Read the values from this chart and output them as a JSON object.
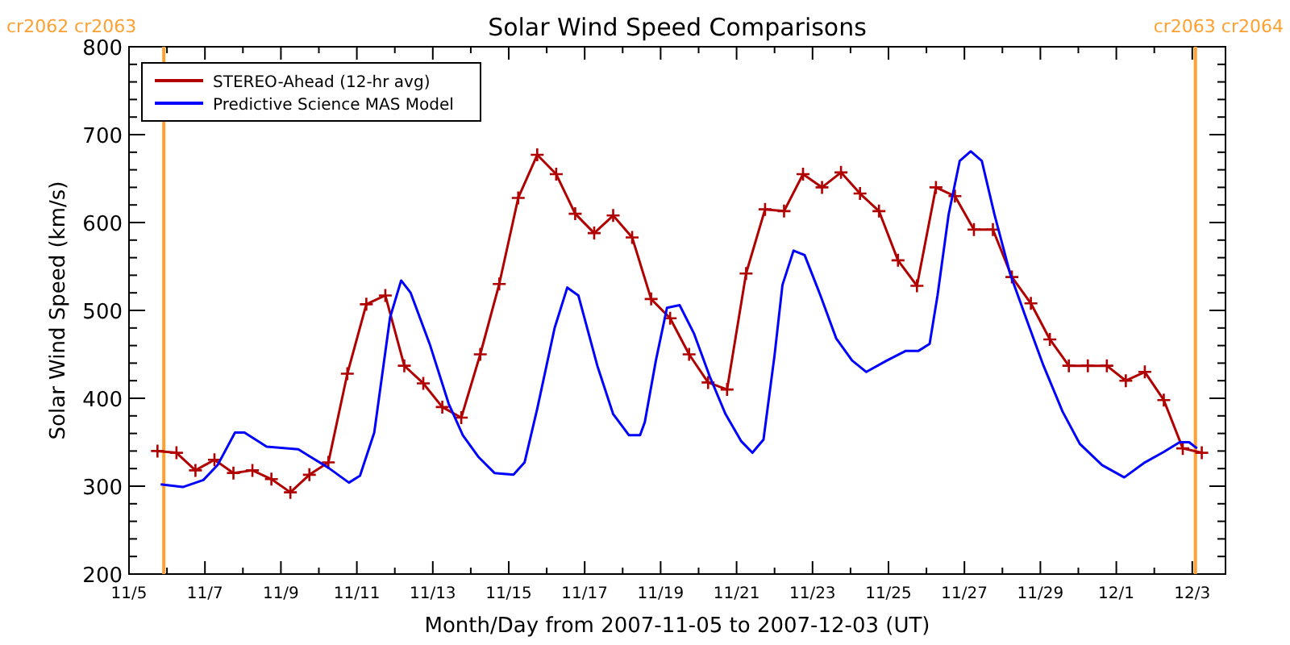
{
  "chart_data": {
    "type": "line",
    "title": "Solar Wind Speed Comparisons",
    "xlabel": "Month/Day from 2007-11-05 to 2007-12-03 (UT)",
    "ylabel": "Solar Wind Speed (km/s)",
    "xlim": [
      "2007-11-05",
      "2007-12-03T21:00"
    ],
    "xticks": [
      {
        "value": "2007-11-05",
        "label": "11/5"
      },
      {
        "value": "2007-11-06",
        "label": null
      },
      {
        "value": "2007-11-07",
        "label": "11/7"
      },
      {
        "value": "2007-11-08",
        "label": null
      },
      {
        "value": "2007-11-09",
        "label": "11/9"
      },
      {
        "value": "2007-11-10",
        "label": null
      },
      {
        "value": "2007-11-11",
        "label": "11/11"
      },
      {
        "value": "2007-11-12",
        "label": null
      },
      {
        "value": "2007-11-13",
        "label": "11/13"
      },
      {
        "value": "2007-11-14",
        "label": null
      },
      {
        "value": "2007-11-15",
        "label": "11/15"
      },
      {
        "value": "2007-11-16",
        "label": null
      },
      {
        "value": "2007-11-17",
        "label": "11/17"
      },
      {
        "value": "2007-11-18",
        "label": null
      },
      {
        "value": "2007-11-19",
        "label": "11/19"
      },
      {
        "value": "2007-11-20",
        "label": null
      },
      {
        "value": "2007-11-21",
        "label": "11/21"
      },
      {
        "value": "2007-11-22",
        "label": null
      },
      {
        "value": "2007-11-23",
        "label": "11/23"
      },
      {
        "value": "2007-11-24",
        "label": null
      },
      {
        "value": "2007-11-25",
        "label": "11/25"
      },
      {
        "value": "2007-11-26",
        "label": null
      },
      {
        "value": "2007-11-27",
        "label": "11/27"
      },
      {
        "value": "2007-11-28",
        "label": null
      },
      {
        "value": "2007-11-29",
        "label": "11/29"
      },
      {
        "value": "2007-11-30",
        "label": null
      },
      {
        "value": "2007-12-01",
        "label": "12/1"
      },
      {
        "value": "2007-12-02",
        "label": null
      },
      {
        "value": "2007-12-03",
        "label": "12/3"
      }
    ],
    "ylim": [
      200,
      800
    ],
    "yticks": [
      200,
      {
        "value": 220,
        "label": null
      },
      {
        "value": 240,
        "label": null
      },
      {
        "value": 260,
        "label": null
      },
      {
        "value": 280,
        "label": null
      },
      300,
      {
        "value": 320,
        "label": null
      },
      {
        "value": 340,
        "label": null
      },
      {
        "value": 360,
        "label": null
      },
      {
        "value": 380,
        "label": null
      },
      400,
      {
        "value": 420,
        "label": null
      },
      {
        "value": 440,
        "label": null
      },
      {
        "value": 460,
        "label": null
      },
      {
        "value": 480,
        "label": null
      },
      500,
      {
        "value": 520,
        "label": null
      },
      {
        "value": 540,
        "label": null
      },
      {
        "value": 560,
        "label": null
      },
      {
        "value": 580,
        "label": null
      },
      600,
      {
        "value": 620,
        "label": null
      },
      {
        "value": 640,
        "label": null
      },
      {
        "value": 660,
        "label": null
      },
      {
        "value": 680,
        "label": null
      },
      700,
      {
        "value": 720,
        "label": null
      },
      {
        "value": 740,
        "label": null
      },
      {
        "value": 760,
        "label": null
      },
      {
        "value": 780,
        "label": null
      },
      800
    ],
    "grid": false,
    "legend": "top left",
    "ref_lines": [
      {
        "axis": "x",
        "value": "2007-11-05T22:00",
        "label": "cr2062 cr2063",
        "color": "#ffa030"
      },
      {
        "axis": "x",
        "value": "2007-12-03T02:00",
        "label": "cr2063 cr2064",
        "color": "#ffa030"
      }
    ],
    "series": [
      {
        "name": "STEREO-Ahead (12-hr avg)",
        "color": "#b00000",
        "marker": "cross",
        "x": [
          "2007-11-05T18:00",
          "2007-11-06T06:00",
          "2007-11-06T18:00",
          "2007-11-07T06:00",
          "2007-11-07T18:00",
          "2007-11-08T06:00",
          "2007-11-08T18:00",
          "2007-11-09T06:00",
          "2007-11-09T18:00",
          "2007-11-10T06:00",
          "2007-11-10T18:00",
          "2007-11-11T06:00",
          "2007-11-11T18:00",
          "2007-11-12T06:00",
          "2007-11-12T18:00",
          "2007-11-13T06:00",
          "2007-11-13T18:00",
          "2007-11-14T06:00",
          "2007-11-14T18:00",
          "2007-11-15T06:00",
          "2007-11-15T18:00",
          "2007-11-16T06:00",
          "2007-11-16T18:00",
          "2007-11-17T06:00",
          "2007-11-17T18:00",
          "2007-11-18T06:00",
          "2007-11-18T18:00",
          "2007-11-19T06:00",
          "2007-11-19T18:00",
          "2007-11-20T06:00",
          "2007-11-20T18:00",
          "2007-11-21T06:00",
          "2007-11-21T18:00",
          "2007-11-22T06:00",
          "2007-11-22T18:00",
          "2007-11-23T06:00",
          "2007-11-23T18:00",
          "2007-11-24T06:00",
          "2007-11-24T18:00",
          "2007-11-25T06:00",
          "2007-11-25T18:00",
          "2007-11-26T06:00",
          "2007-11-26T18:00",
          "2007-11-27T06:00",
          "2007-11-27T18:00",
          "2007-11-28T06:00",
          "2007-11-28T18:00",
          "2007-11-29T06:00",
          "2007-11-29T18:00",
          "2007-11-30T06:00",
          "2007-11-30T18:00",
          "2007-12-01T06:00",
          "2007-12-01T18:00",
          "2007-12-02T06:00",
          "2007-12-02T18:00",
          "2007-12-03T06:00"
        ],
        "values": [
          340,
          338,
          318,
          330,
          315,
          318,
          308,
          293,
          313,
          327,
          428,
          507,
          517,
          437,
          417,
          390,
          378,
          450,
          530,
          628,
          677,
          655,
          610,
          588,
          608,
          583,
          513,
          491,
          450,
          418,
          410,
          542,
          615,
          613,
          655,
          640,
          657,
          633,
          613,
          557,
          528,
          640,
          630,
          592,
          592,
          538,
          508,
          467,
          437,
          437,
          437,
          420,
          430,
          398,
          343,
          338
        ]
      },
      {
        "name": "Predictive Science MAS Model",
        "color": "#0000ff",
        "marker": "none",
        "x": [
          "2007-11-05T20:00",
          "2007-11-06T10:00",
          "2007-11-06T23:00",
          "2007-11-07T08:00",
          "2007-11-07T19:00",
          "2007-11-08T01:00",
          "2007-11-08T15:00",
          "2007-11-09T11:00",
          "2007-11-09T19:00",
          "2007-11-10T06:00",
          "2007-11-10T19:00",
          "2007-11-11T02:00",
          "2007-11-11T11:00",
          "2007-11-11T21:00",
          "2007-11-12T04:00",
          "2007-11-12T10:00",
          "2007-11-12T22:00",
          "2007-11-13T10:00",
          "2007-11-13T19:00",
          "2007-11-14T05:00",
          "2007-11-14T15:00",
          "2007-11-15T03:00",
          "2007-11-15T10:00",
          "2007-11-15T18:00",
          "2007-11-16T05:00",
          "2007-11-16T13:00",
          "2007-11-16T20:00",
          "2007-11-17T08:00",
          "2007-11-17T18:00",
          "2007-11-18T04:00",
          "2007-11-18T11:00",
          "2007-11-18T14:00",
          "2007-11-18T21:00",
          "2007-11-19T04:00",
          "2007-11-19T12:00",
          "2007-11-19T21:00",
          "2007-11-20T07:00",
          "2007-11-20T17:00",
          "2007-11-21T03:00",
          "2007-11-21T10:00",
          "2007-11-21T17:00",
          "2007-11-22T00:00",
          "2007-11-22T05:00",
          "2007-11-22T12:00",
          "2007-11-22T19:00",
          "2007-11-23T05:00",
          "2007-11-23T15:00",
          "2007-11-24T01:00",
          "2007-11-24T10:00",
          "2007-11-24T23:00",
          "2007-11-25T11:00",
          "2007-11-25T19:00",
          "2007-11-26T02:00",
          "2007-11-26T07:00",
          "2007-11-26T14:00",
          "2007-11-26T21:00",
          "2007-11-27T04:00",
          "2007-11-27T11:00",
          "2007-11-27T19:00",
          "2007-11-28T05:00",
          "2007-11-28T16:00",
          "2007-11-29T02:00",
          "2007-11-29T14:00",
          "2007-11-30T01:00",
          "2007-11-30T15:00",
          "2007-12-01T05:00",
          "2007-12-01T18:00",
          "2007-12-02T06:00",
          "2007-12-02T16:00",
          "2007-12-02T22:00",
          "2007-12-03T03:00"
        ],
        "values": [
          302,
          299,
          307,
          324,
          361,
          361,
          345,
          342,
          333,
          321,
          304,
          312,
          361,
          492,
          534,
          520,
          462,
          394,
          358,
          333,
          315,
          313,
          327,
          388,
          480,
          526,
          517,
          437,
          382,
          358,
          358,
          373,
          443,
          503,
          506,
          474,
          425,
          382,
          351,
          338,
          353,
          449,
          529,
          568,
          563,
          517,
          468,
          443,
          430,
          443,
          454,
          454,
          462,
          517,
          609,
          670,
          681,
          670,
          609,
          541,
          486,
          437,
          385,
          348,
          324,
          310,
          327,
          339,
          350,
          350,
          343
        ]
      }
    ]
  }
}
